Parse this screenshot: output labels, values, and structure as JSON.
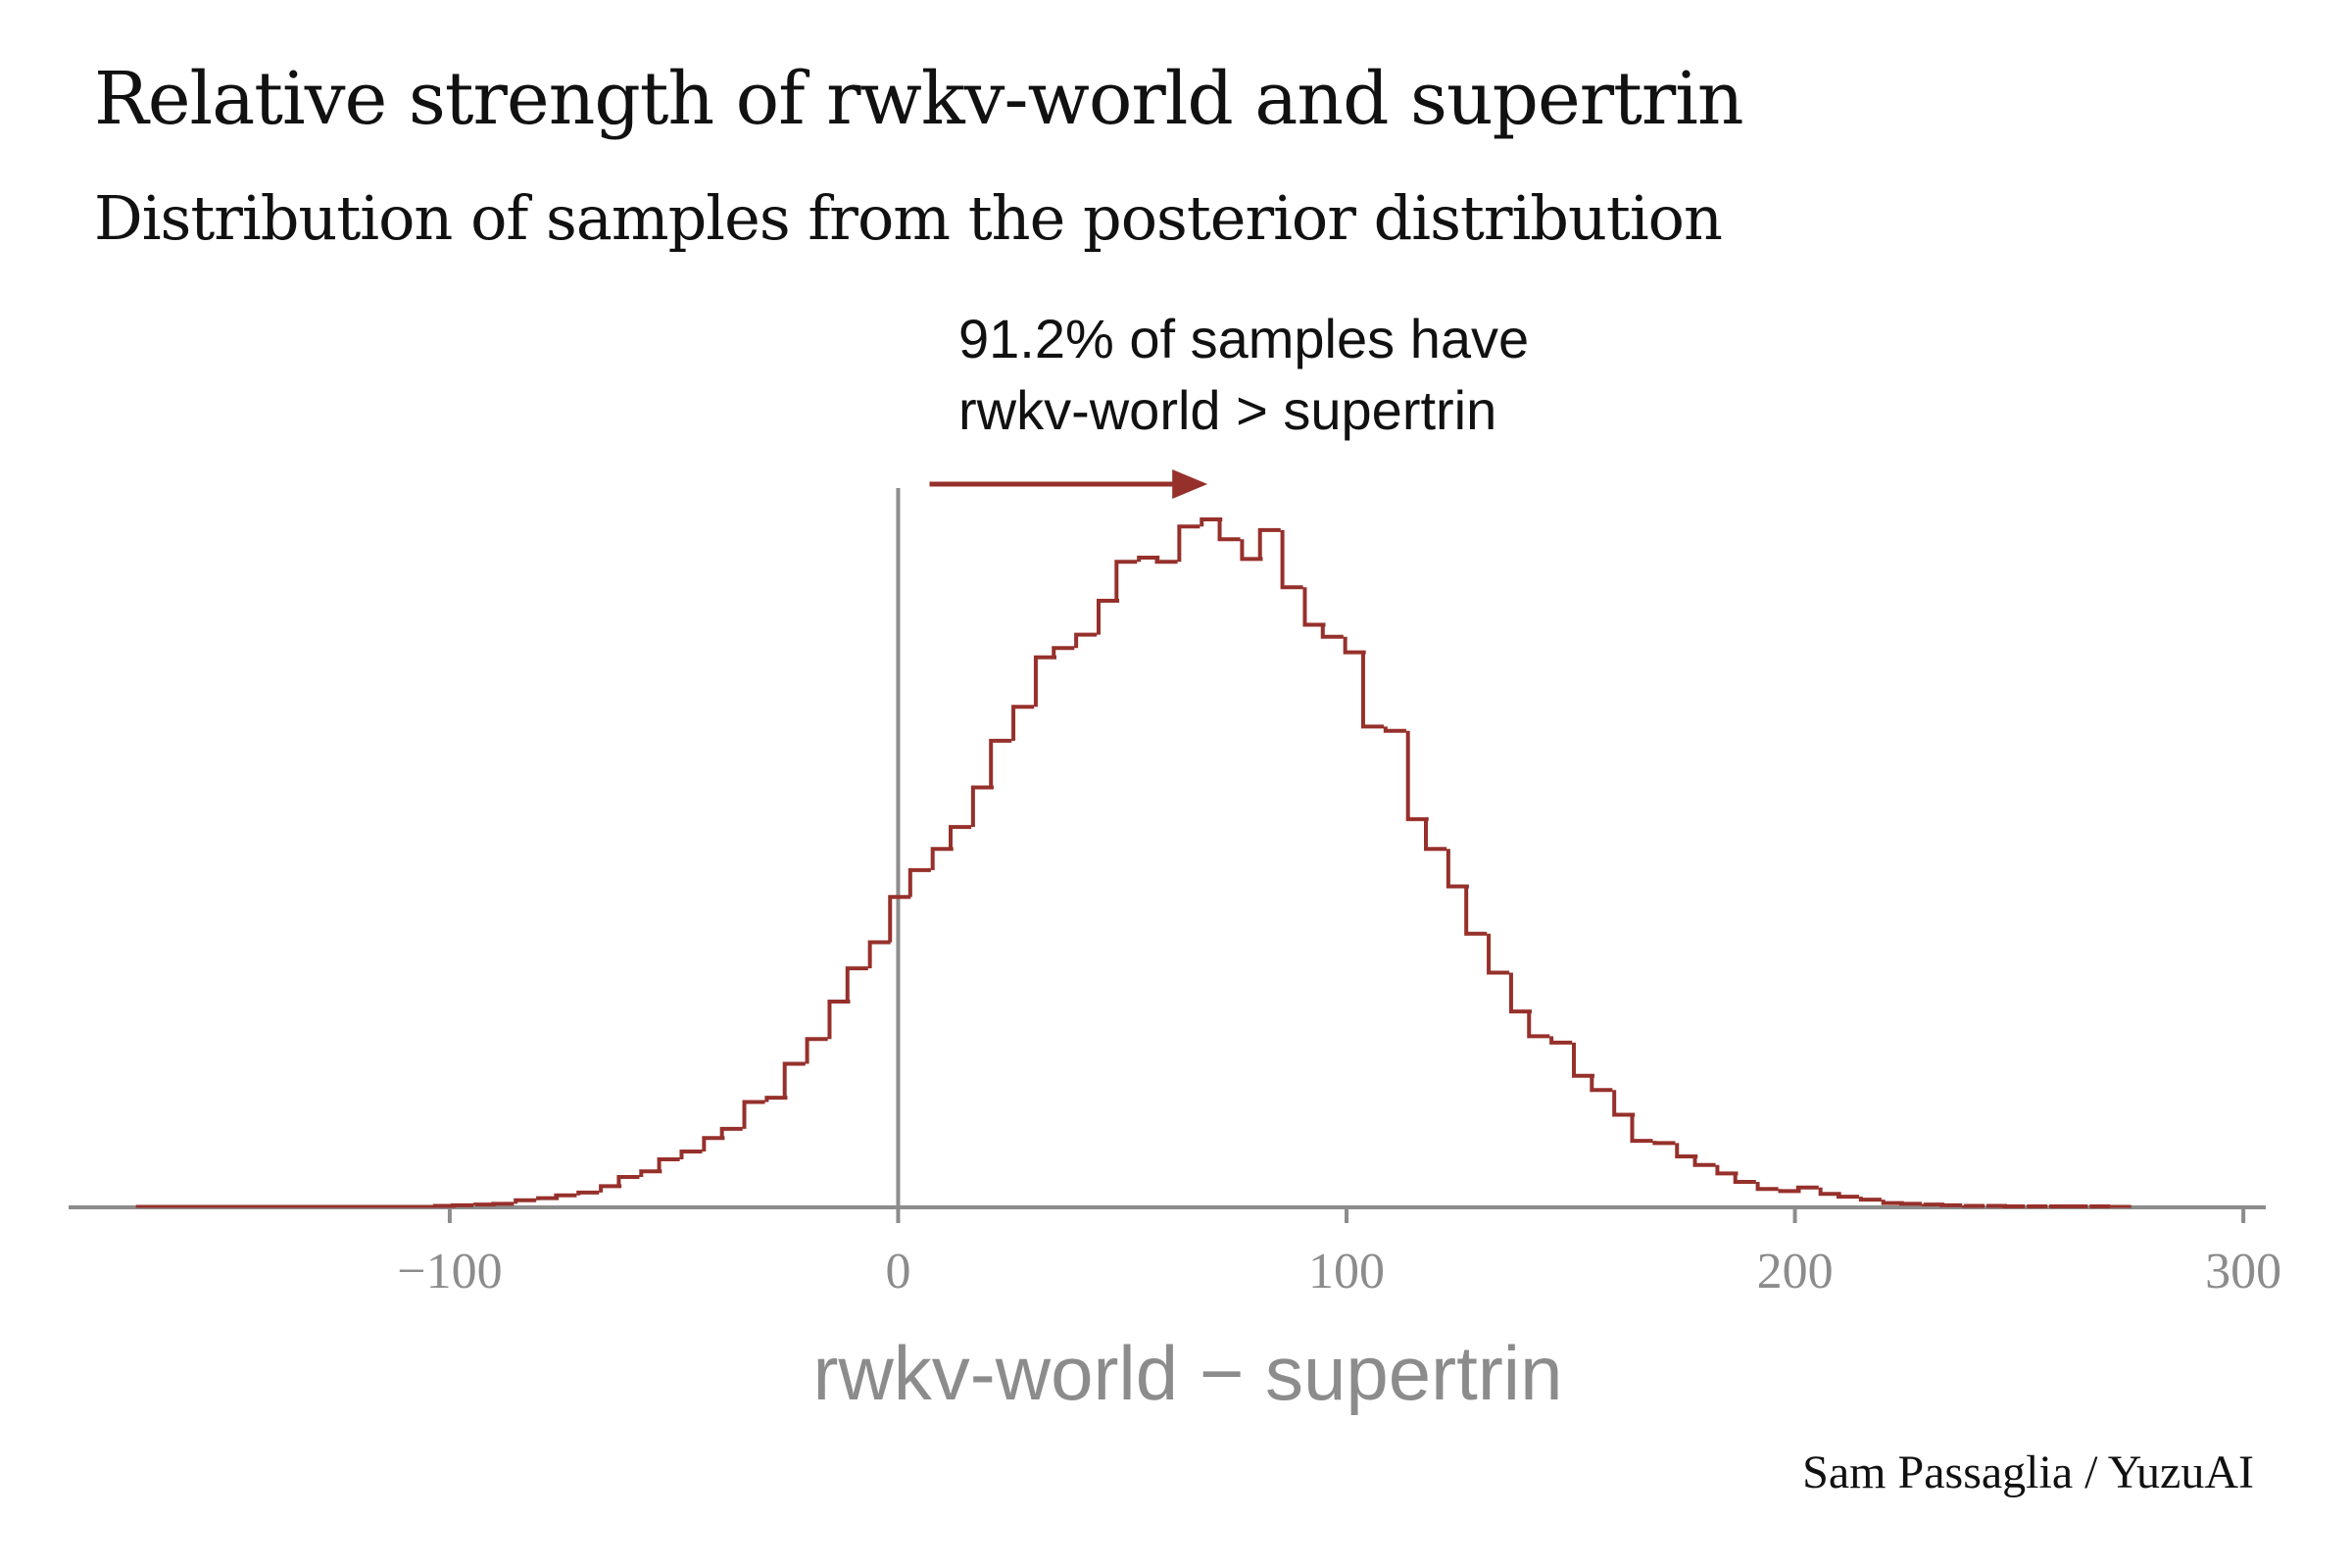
{
  "title": "Relative strength of rwkv-world and supertrin",
  "subtitle": "Distribution of samples from the posterior distribution",
  "credit": "Sam Passaglia / YuzuAI",
  "colors": {
    "histogram": "#96302b",
    "axis": "#8c8c8c",
    "text": "#111111"
  },
  "chart_data": {
    "type": "histogram",
    "xlabel": "rwkv-world − supertrin",
    "ylabel": "",
    "xlim": [
      -185,
      305
    ],
    "xticks": [
      -100,
      0,
      100,
      200,
      300
    ],
    "xtick_labels": [
      "−100",
      "0",
      "100",
      "200",
      "300"
    ],
    "y_axis_visible": false,
    "grid": false,
    "reference_line_x": 0,
    "annotation": {
      "lines": [
        "91.2% of samples have",
        "rwkv-world > supertrin"
      ],
      "arrow_from_x": 7,
      "arrow_to_x": 69
    },
    "bin_width": 4.6,
    "bin_start": -170,
    "bin_end": 275,
    "series": [
      {
        "bins": [
          [
            -101,
            0.2
          ],
          [
            -97,
            0.3
          ],
          [
            -92,
            0.4
          ],
          [
            -88,
            0.5
          ],
          [
            -83,
            1.0
          ],
          [
            -78,
            1.3
          ],
          [
            -74,
            1.7
          ],
          [
            -69,
            2.1
          ],
          [
            -64,
            3.0
          ],
          [
            -60,
            4.3
          ],
          [
            -55,
            5.1
          ],
          [
            -51,
            6.8
          ],
          [
            -46,
            7.9
          ],
          [
            -41,
            9.8
          ],
          [
            -37,
            11.1
          ],
          [
            -32,
            14.9
          ],
          [
            -27,
            15.5
          ],
          [
            -23,
            20.3
          ],
          [
            -18,
            23.8
          ],
          [
            -13,
            29.1
          ],
          [
            -9,
            33.8
          ],
          [
            -4,
            37.5
          ],
          [
            0.5,
            43.9
          ],
          [
            5,
            47.7
          ],
          [
            10,
            50.7
          ],
          [
            14,
            53.8
          ],
          [
            19,
            59.4
          ],
          [
            23,
            66.0
          ],
          [
            28,
            70.8
          ],
          [
            33,
            77.8
          ],
          [
            37,
            79.1
          ],
          [
            42,
            81.0
          ],
          [
            47,
            85.8
          ],
          [
            51,
            91.3
          ],
          [
            56,
            91.9
          ],
          [
            60,
            91.3
          ],
          [
            65,
            96.3
          ],
          [
            70,
            97.3
          ],
          [
            74,
            94.5
          ],
          [
            79,
            91.7
          ],
          [
            83,
            95.8
          ],
          [
            88,
            87.7
          ],
          [
            93,
            82.4
          ],
          [
            97,
            80.7
          ],
          [
            102,
            78.5
          ],
          [
            106,
            68.0
          ],
          [
            111,
            67.4
          ],
          [
            116,
            54.9
          ],
          [
            120,
            50.7
          ],
          [
            125,
            45.4
          ],
          [
            129,
            38.7
          ],
          [
            134,
            33.2
          ],
          [
            139,
            27.7
          ],
          [
            143,
            24.2
          ],
          [
            148,
            23.3
          ],
          [
            153,
            18.6
          ],
          [
            157,
            16.6
          ],
          [
            162,
            13.1
          ],
          [
            166,
            9.4
          ],
          [
            171,
            9.1
          ],
          [
            176,
            7.2
          ],
          [
            180,
            6.0
          ],
          [
            185,
            4.8
          ],
          [
            189,
            3.6
          ],
          [
            194,
            2.6
          ],
          [
            199,
            2.3
          ],
          [
            203,
            2.8
          ],
          [
            208,
            1.9
          ],
          [
            212,
            1.5
          ],
          [
            217,
            1.1
          ],
          [
            222,
            0.6
          ],
          [
            226,
            0.5
          ],
          [
            231,
            0.4
          ],
          [
            235,
            0.3
          ],
          [
            240,
            0.2
          ],
          [
            245,
            0.2
          ],
          [
            249,
            0.1
          ],
          [
            254,
            0.1
          ],
          [
            259,
            0.1
          ],
          [
            263,
            0.05
          ],
          [
            268,
            0.05
          ]
        ]
      }
    ]
  }
}
